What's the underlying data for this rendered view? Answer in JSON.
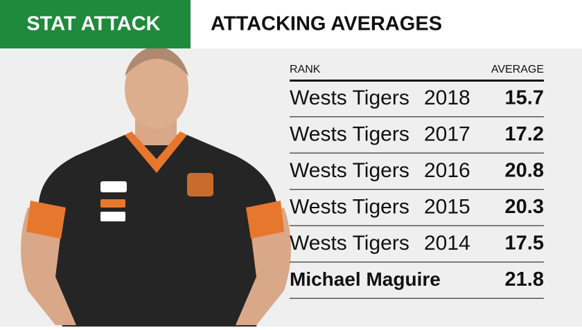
{
  "header": {
    "label": "STAT ATTACK",
    "title": "ATTACKING AVERAGES"
  },
  "table": {
    "columns": [
      "RANK",
      "AVERAGE"
    ],
    "rows": [
      {
        "team": "Wests Tigers",
        "year": "2018",
        "average": 15.7
      },
      {
        "team": "Wests Tigers",
        "year": "2017",
        "average": 17.2
      },
      {
        "team": "Wests Tigers",
        "year": "2016",
        "average": 20.8
      },
      {
        "team": "Wests Tigers",
        "year": "2015",
        "average": 20.3
      },
      {
        "team": "Wests Tigers",
        "year": "2014",
        "average": 17.5
      },
      {
        "team": "Michael Maguire",
        "average": 21.8
      }
    ]
  }
}
